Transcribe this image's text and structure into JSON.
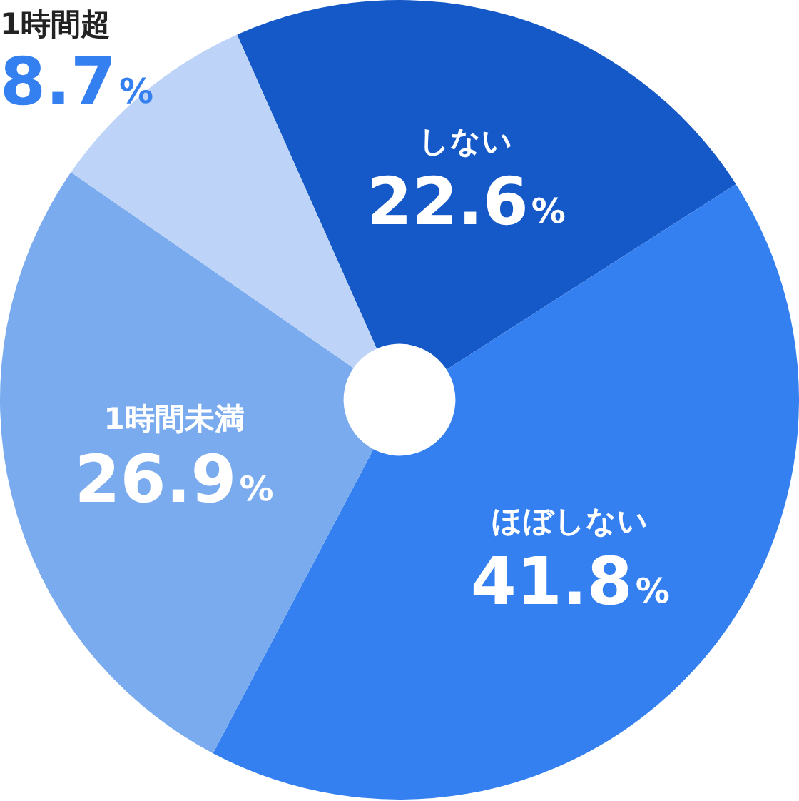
{
  "chart_data": {
    "type": "donut",
    "categories": [
      "しない",
      "ほぼしない",
      "1時間未満",
      "1時間超"
    ],
    "values": [
      22.6,
      41.8,
      26.9,
      8.7
    ],
    "colors": [
      "#1558c8",
      "#3580f0",
      "#7aabee",
      "#bdd3f7"
    ],
    "value_labels": [
      "22.6%",
      "41.8%",
      "26.9%",
      "8.7%"
    ]
  }
}
